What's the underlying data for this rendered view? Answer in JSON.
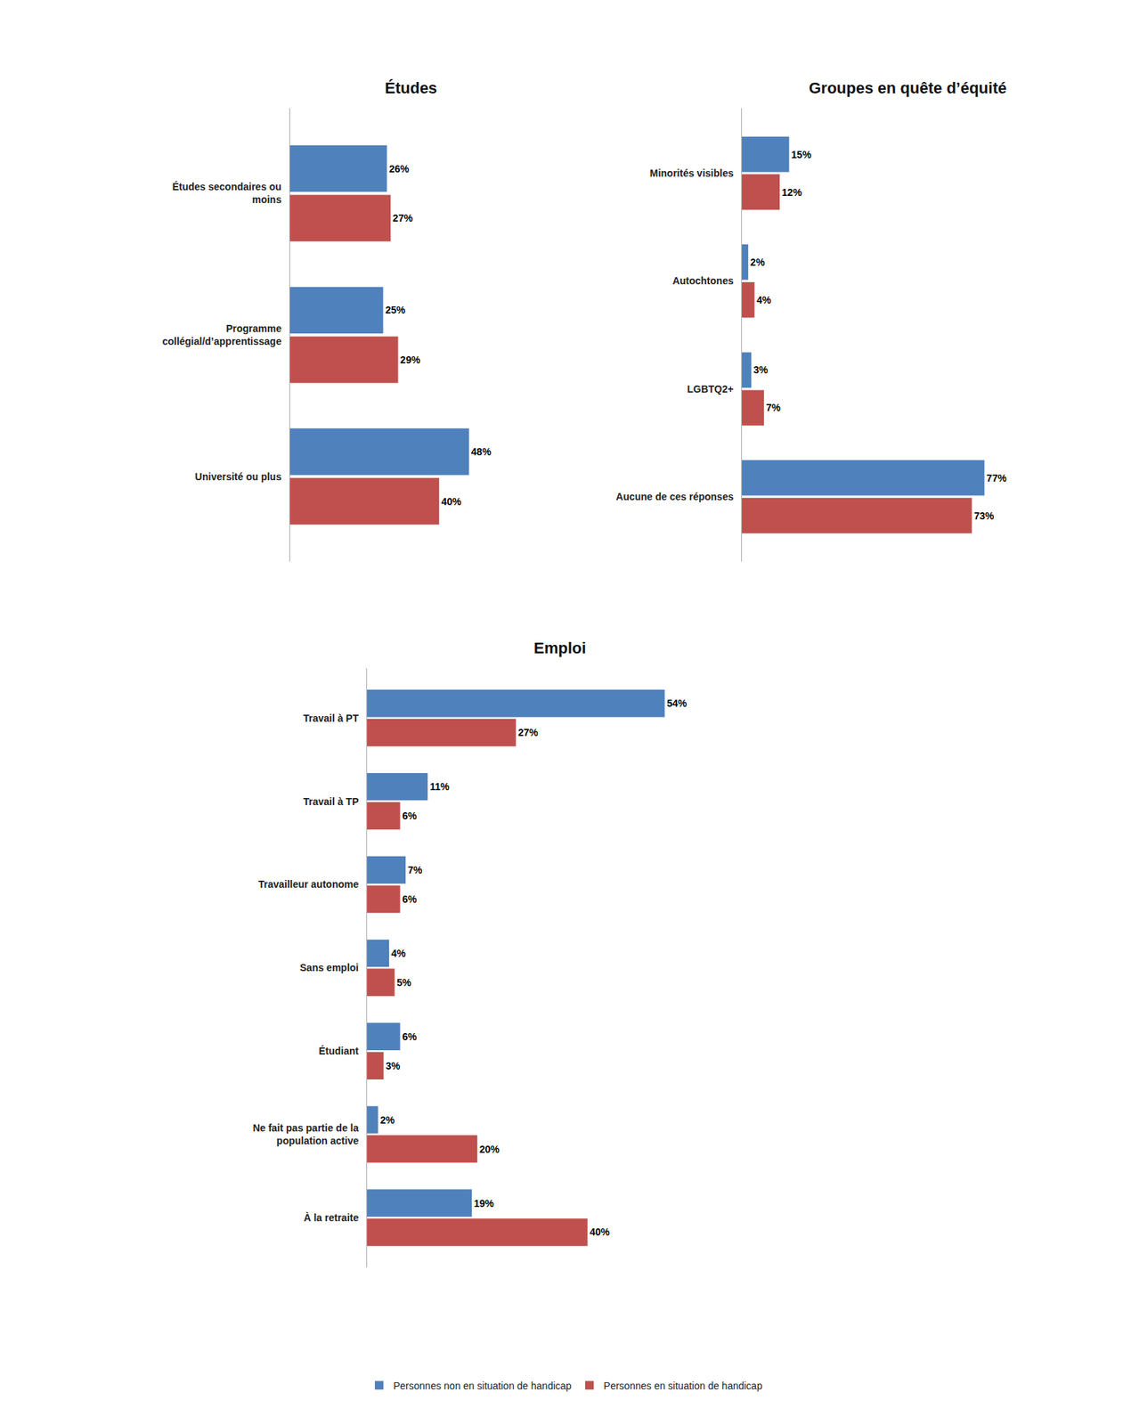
{
  "chart_data": [
    {
      "type": "bar",
      "orientation": "horizontal",
      "title": "Études",
      "categories": [
        "Université ou plus",
        "Programme\ncollégial/d’apprentissage",
        "Études secondaires ou\nmoins"
      ],
      "series": [
        {
          "name": "Personnes non en situation de handicap",
          "color": "#4F81BD",
          "values": [
            48,
            25,
            26
          ],
          "value_labels": [
            "48%",
            "25%",
            "26%"
          ]
        },
        {
          "name": "Personnes en situation de handicap",
          "color": "#C0504D",
          "values": [
            40,
            29,
            27
          ],
          "value_labels": [
            "40%",
            "29%",
            "27%"
          ]
        }
      ],
      "xlim": [
        0,
        65
      ],
      "data_labels": true,
      "tick_labels": "y",
      "grid": false,
      "legend": "bottom"
    },
    {
      "type": "bar",
      "orientation": "horizontal",
      "title": "Groupes en quête d’équité",
      "categories": [
        "Aucune de ces réponses",
        "LGBTQ2+",
        "Autochtones",
        "Minorités visibles"
      ],
      "series": [
        {
          "name": "Personnes non en situation de handicap",
          "color": "#4F81BD",
          "values": [
            77,
            3,
            2,
            15
          ],
          "value_labels": [
            "77%",
            "3%",
            "2%",
            "15%"
          ]
        },
        {
          "name": "Personnes en situation de handicap",
          "color": "#C0504D",
          "values": [
            73,
            7,
            4,
            12
          ],
          "value_labels": [
            "73%",
            "7%",
            "4%",
            "12%"
          ]
        }
      ],
      "xlim": [
        0,
        105
      ],
      "data_labels": true,
      "tick_labels": "y",
      "grid": false
    },
    {
      "type": "bar",
      "orientation": "horizontal",
      "title": "Emploi",
      "categories": [
        "À la retraite",
        "Ne fait pas partie de la\npopulation active",
        "Étudiant",
        "Sans emploi",
        "Travailleur autonome",
        "Travail à TP",
        "Travail à PT"
      ],
      "series": [
        {
          "name": "Personnes non en situation de handicap",
          "color": "#4F81BD",
          "values": [
            19,
            2,
            6,
            4,
            7,
            11,
            54
          ],
          "value_labels": [
            "19%",
            "2%",
            "6%",
            "4%",
            "7%",
            "11%",
            "54%"
          ]
        },
        {
          "name": "Personnes en situation de handicap",
          "color": "#C0504D",
          "values": [
            40,
            20,
            3,
            5,
            6,
            6,
            27
          ],
          "value_labels": [
            "40%",
            "20%",
            "3%",
            "5%",
            "6%",
            "6%",
            "27%"
          ]
        }
      ],
      "xlim": [
        0,
        70
      ],
      "data_labels": true,
      "tick_labels": "y",
      "grid": false
    }
  ]
}
